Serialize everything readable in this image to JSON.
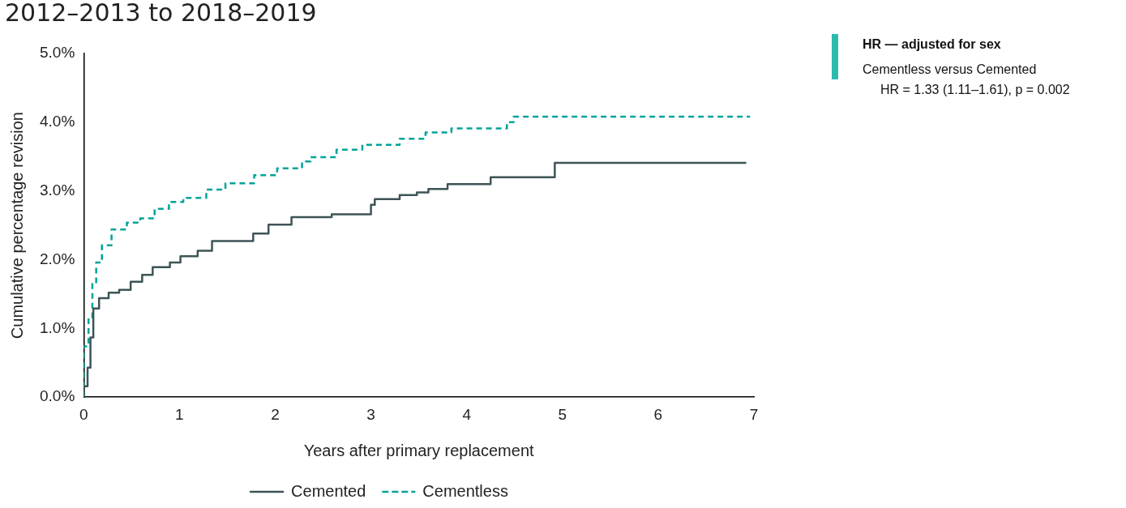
{
  "chart_data": {
    "type": "step",
    "title": "2012–2013 to 2018–2019",
    "xlabel": "Years after primary replacement",
    "ylabel": "Cumulative percentage revision",
    "annotations": [
      "HR — adjusted for sex",
      "Cementless versus Cemented",
      "HR = 1.33 (1.11–1.61), p = 0.002"
    ],
    "xlim": [
      0,
      7
    ],
    "xticks": [
      0,
      1,
      2,
      3,
      4,
      5,
      6,
      7
    ],
    "ylim": [
      0,
      5
    ],
    "yticks": [
      {
        "value": 0,
        "label": "0.0%"
      },
      {
        "value": 1,
        "label": "1.0%"
      },
      {
        "value": 2,
        "label": "2.0%"
      },
      {
        "value": 3,
        "label": "3.0%"
      },
      {
        "value": 4,
        "label": "4.0%"
      },
      {
        "value": 5,
        "label": "5.0%"
      }
    ],
    "grid": false,
    "legend": "bottom",
    "marker": "none",
    "series": [
      {
        "name": "Cemented",
        "color": "#3d5457",
        "line_style": "solid",
        "x": [
          0,
          0.04,
          0.07,
          0.1,
          0.16,
          0.26,
          0.37,
          0.49,
          0.61,
          0.72,
          0.9,
          1.01,
          1.19,
          1.34,
          1.53,
          1.77,
          1.93,
          2.17,
          2.59,
          3.0,
          3.04,
          3.3,
          3.48,
          3.6,
          3.8,
          4.25,
          4.92,
          6.02,
          6.92
        ],
        "values": [
          0,
          0.16,
          0.43,
          0.87,
          1.29,
          1.44,
          1.52,
          1.56,
          1.68,
          1.78,
          1.89,
          1.96,
          2.05,
          2.13,
          2.27,
          2.27,
          2.38,
          2.51,
          2.62,
          2.66,
          2.8,
          2.88,
          2.94,
          2.98,
          3.03,
          3.1,
          3.2,
          3.41,
          3.41
        ]
      },
      {
        "name": "Cementless",
        "color": "#00a39a",
        "line_style": "dashed",
        "x": [
          0,
          0.05,
          0.09,
          0.13,
          0.19,
          0.29,
          0.45,
          0.59,
          0.74,
          0.89,
          1.04,
          1.28,
          1.48,
          1.78,
          2.02,
          2.28,
          2.37,
          2.64,
          2.91,
          3.3,
          3.57,
          3.84,
          4.42,
          4.49,
          4.93,
          6.96
        ],
        "values": [
          0,
          0.74,
          1.16,
          1.65,
          1.96,
          2.21,
          2.44,
          2.54,
          2.6,
          2.74,
          2.84,
          2.9,
          3.02,
          3.11,
          3.23,
          3.33,
          3.43,
          3.49,
          3.6,
          3.67,
          3.76,
          3.85,
          3.91,
          4.0,
          4.08,
          4.08
        ]
      }
    ]
  }
}
